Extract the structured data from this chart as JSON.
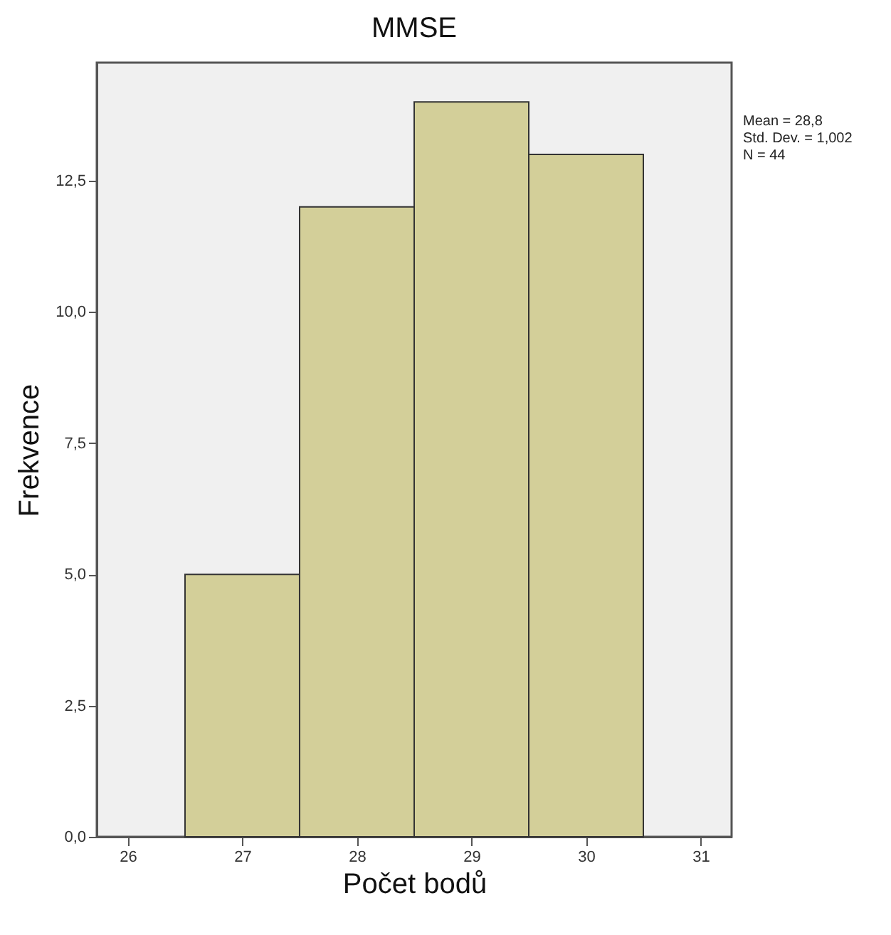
{
  "chart_data": {
    "type": "histogram",
    "title": "MMSE",
    "xlabel": "Počet bodů",
    "ylabel": "Frekvence",
    "bins": [
      26.5,
      27.5,
      28.5,
      29.5,
      30.5
    ],
    "values": [
      5,
      12,
      14,
      13
    ],
    "color": "#d3cf99",
    "xlim": [
      25.73,
      31.27
    ],
    "xticks": [
      26,
      27,
      28,
      29,
      30,
      31
    ],
    "ylim": [
      0,
      14.75
    ],
    "yticks": [
      {
        "value": 0,
        "label": "0,0"
      },
      {
        "value": 2.5,
        "label": "2,5"
      },
      {
        "value": 5,
        "label": "5,0"
      },
      {
        "value": 7.5,
        "label": "7,5"
      },
      {
        "value": 10,
        "label": "10,0"
      },
      {
        "value": 12.5,
        "label": "12,5"
      }
    ],
    "annotations": [
      "Mean = 28,8",
      "Std. Dev. = 1,002",
      "N = 44"
    ],
    "grid": false
  }
}
